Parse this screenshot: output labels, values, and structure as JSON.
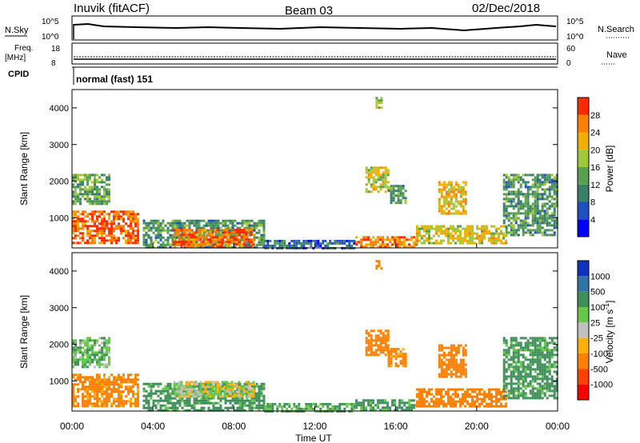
{
  "header": {
    "station": "Inuvik (fitACF)",
    "beam": "Beam 03",
    "date": "02/Dec/2018"
  },
  "summary": {
    "nsky_label": "N.Sky",
    "nsky_ticks": [
      "10^5",
      "10^0"
    ],
    "nsearch_label": "N.Search",
    "freq_label_1": "Freq.",
    "freq_label_2": "[MHz]",
    "freq_ticks": [
      "18",
      "8"
    ],
    "nave_label": "Nave",
    "nave_ticks": [
      "60",
      "0"
    ],
    "cpid_label": "CPID",
    "cpid_value": "normal (fast) 151"
  },
  "chart_data": [
    {
      "type": "heatmap",
      "title": "",
      "xlabel": "Time UT",
      "ylabel": "Slant Range [km]",
      "xlim": [
        "00:00",
        "24:00"
      ],
      "ylim": [
        180,
        4500
      ],
      "x_ticks": [
        "00:00",
        "04:00",
        "08:00",
        "12:00",
        "16:00",
        "20:00",
        "00:00"
      ],
      "y_ticks": [
        1000,
        2000,
        3000,
        4000
      ],
      "colorbar": {
        "label": "Power [dB]",
        "range": [
          0,
          32
        ],
        "ticks": [
          4,
          8,
          12,
          16,
          20,
          24,
          28
        ],
        "colors": [
          "#0000ff",
          "#2050c0",
          "#3a7f6a",
          "#58a050",
          "#a0c838",
          "#f0b000",
          "#ff7f00",
          "#ff2a00"
        ]
      },
      "regions": [
        {
          "t0": 0.0,
          "t1": 3.3,
          "r0": 300,
          "r1": 1200,
          "value": 27
        },
        {
          "t0": 0.0,
          "t1": 1.8,
          "r0": 1400,
          "r1": 2200,
          "value": 14
        },
        {
          "t0": 3.5,
          "t1": 9.5,
          "r0": 180,
          "r1": 950,
          "value": 12
        },
        {
          "t0": 5.0,
          "t1": 9.0,
          "r0": 200,
          "r1": 700,
          "value": 27
        },
        {
          "t0": 9.5,
          "t1": 14.0,
          "r0": 180,
          "r1": 400,
          "value": 8
        },
        {
          "t0": 14.0,
          "t1": 17.0,
          "r0": 200,
          "r1": 500,
          "value": 26
        },
        {
          "t0": 14.5,
          "t1": 15.6,
          "r0": 1700,
          "r1": 2400,
          "value": 20
        },
        {
          "t0": 15.6,
          "t1": 16.5,
          "r0": 1400,
          "r1": 1900,
          "value": 12
        },
        {
          "t0": 18.1,
          "t1": 19.5,
          "r0": 1100,
          "r1": 2000,
          "value": 22
        },
        {
          "t0": 17.0,
          "t1": 21.5,
          "r0": 300,
          "r1": 800,
          "value": 20
        },
        {
          "t0": 21.3,
          "t1": 24.0,
          "r0": 500,
          "r1": 2200,
          "value": 12
        },
        {
          "t0": 15.0,
          "t1": 15.3,
          "r0": 4000,
          "r1": 4300,
          "value": 18
        }
      ]
    },
    {
      "type": "heatmap",
      "title": "",
      "xlabel": "Time UT",
      "ylabel": "Slant Range [km]",
      "xlim": [
        "00:00",
        "24:00"
      ],
      "ylim": [
        180,
        4500
      ],
      "x_ticks": [
        "00:00",
        "04:00",
        "08:00",
        "12:00",
        "16:00",
        "20:00",
        "00:00"
      ],
      "y_ticks": [
        1000,
        2000,
        3000,
        4000
      ],
      "colorbar": {
        "label": "Velocity [m s^-1]",
        "ticks": [
          1000,
          500,
          100,
          25,
          -25,
          -100,
          -500,
          -1000
        ],
        "colors": [
          "#1030c0",
          "#2f74a6",
          "#3f8f5a",
          "#66c84a",
          "#c0c0c0",
          "#ffb000",
          "#ff7f00",
          "#ff4000",
          "#ff0000"
        ]
      },
      "regions": [
        {
          "t0": 0.0,
          "t1": 3.3,
          "r0": 300,
          "r1": 1200,
          "value": -150
        },
        {
          "t0": 0.0,
          "t1": 1.8,
          "r0": 1400,
          "r1": 2200,
          "value": 80
        },
        {
          "t0": 3.5,
          "t1": 9.5,
          "r0": 180,
          "r1": 950,
          "value": 150
        },
        {
          "t0": 5.0,
          "t1": 9.0,
          "r0": 600,
          "r1": 1000,
          "value": 0
        },
        {
          "t0": 9.5,
          "t1": 14.0,
          "r0": 180,
          "r1": 400,
          "value": 120
        },
        {
          "t0": 14.0,
          "t1": 17.0,
          "r0": 200,
          "r1": 500,
          "value": 150
        },
        {
          "t0": 14.5,
          "t1": 15.6,
          "r0": 1700,
          "r1": 2400,
          "value": -300
        },
        {
          "t0": 15.6,
          "t1": 16.5,
          "r0": 1400,
          "r1": 1900,
          "value": -150
        },
        {
          "t0": 18.1,
          "t1": 19.5,
          "r0": 1100,
          "r1": 2000,
          "value": -300
        },
        {
          "t0": 17.0,
          "t1": 21.5,
          "r0": 300,
          "r1": 800,
          "value": -200
        },
        {
          "t0": 21.3,
          "t1": 24.0,
          "r0": 500,
          "r1": 2200,
          "value": 150
        },
        {
          "t0": 15.0,
          "t1": 15.3,
          "r0": 4000,
          "r1": 4300,
          "value": -200
        }
      ]
    }
  ]
}
